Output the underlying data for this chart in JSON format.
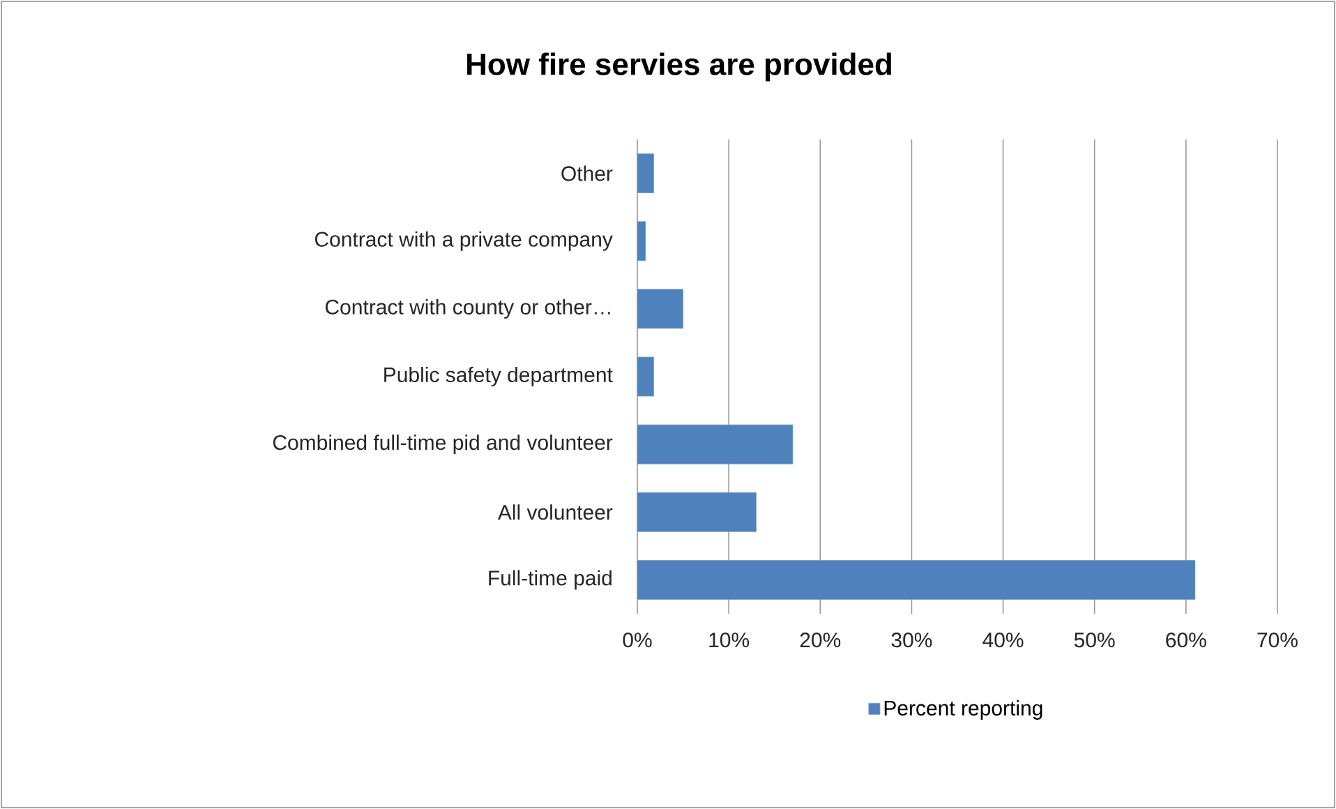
{
  "chart_data": {
    "type": "bar",
    "orientation": "horizontal",
    "title": "How fire servies are provided",
    "categories": [
      "Other",
      "Contract with a private company",
      "Contract with county or other…",
      "Public safety department",
      "Combined full-time pid and volunteer",
      "All volunteer",
      "Full-time paid"
    ],
    "series": [
      {
        "name": "Percent reporting",
        "color": "#4f81bd",
        "values": [
          1.8,
          0.9,
          5,
          1.8,
          17,
          13,
          61
        ]
      }
    ],
    "xlim": [
      0,
      70
    ],
    "xticks": [
      {
        "value": 0,
        "label": "0%"
      },
      {
        "value": 10,
        "label": "10%"
      },
      {
        "value": 20,
        "label": "20%"
      },
      {
        "value": 30,
        "label": "30%"
      },
      {
        "value": 40,
        "label": "40%"
      },
      {
        "value": 50,
        "label": "50%"
      },
      {
        "value": 60,
        "label": "60%"
      },
      {
        "value": 70,
        "label": "70%"
      }
    ],
    "grid": "x",
    "legend": "bottom"
  }
}
